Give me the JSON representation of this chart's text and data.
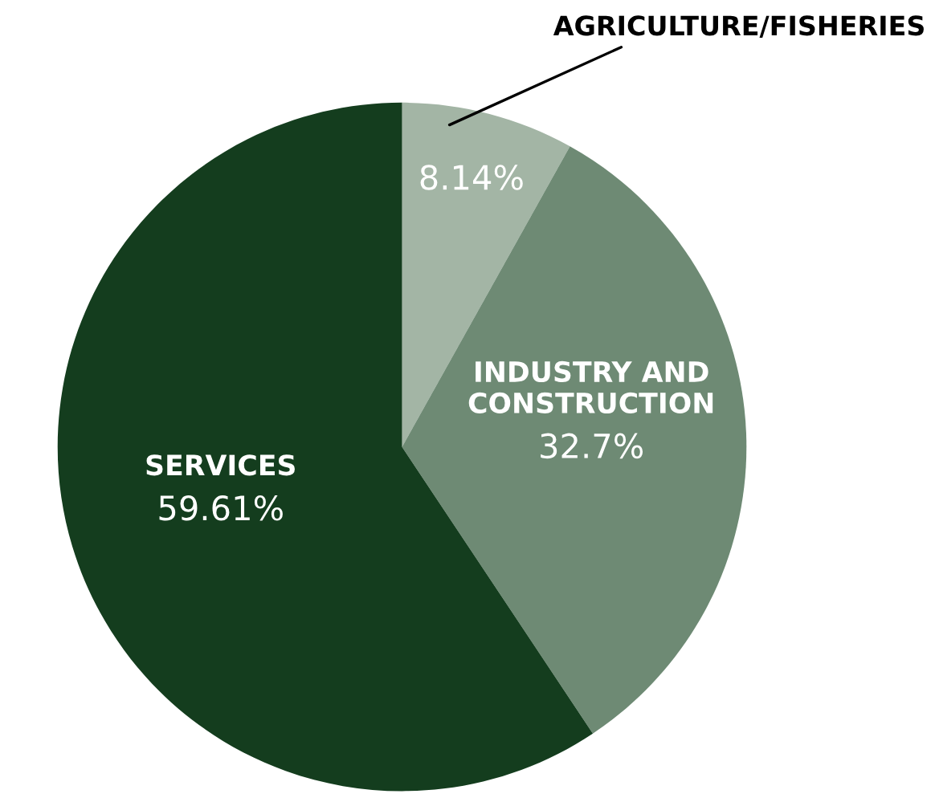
{
  "chart_data": {
    "type": "pie",
    "categories": [
      "AGRICULTURE/FISHERIES",
      "INDUSTRY AND\nCONSTRUCTION",
      "SERVICES"
    ],
    "values": [
      8.14,
      32.7,
      59.61
    ],
    "value_labels": [
      "8.14%",
      "32.7%",
      "59.61%"
    ],
    "colors": [
      "#a3b5a5",
      "#6e8a74",
      "#143d1e"
    ]
  }
}
